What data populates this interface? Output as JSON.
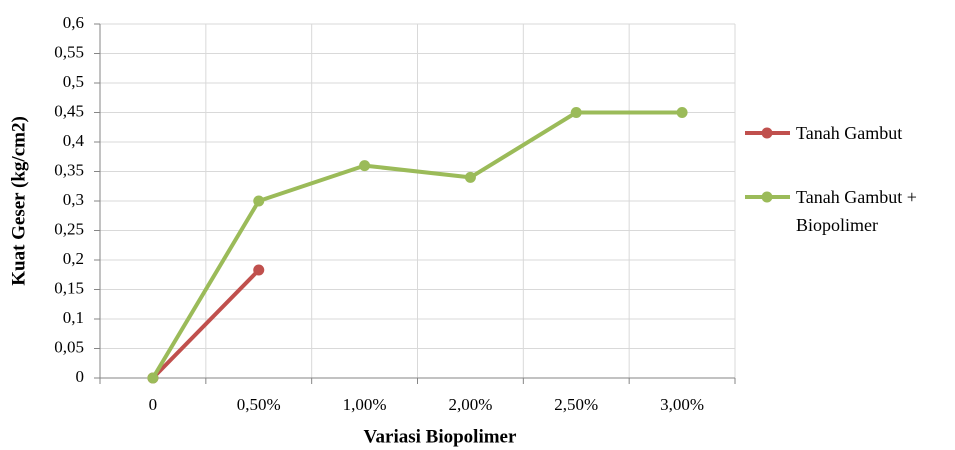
{
  "chart_data": {
    "type": "line",
    "x_label": "Variasi Biopolimer",
    "y_label": "Kuat Geser (kg/cm2)",
    "categories": [
      "0",
      "0,50%",
      "1,00%",
      "2,00%",
      "2,50%",
      "3,00%"
    ],
    "series": [
      {
        "name": "Tanah Gambut",
        "color": "#c0504d",
        "values": [
          0,
          0.183,
          null,
          null,
          null,
          null
        ]
      },
      {
        "name": "Tanah Gambut + Biopolimer",
        "color": "#9bbb59",
        "values": [
          0,
          0.3,
          0.36,
          0.34,
          0.45,
          0.45
        ]
      }
    ],
    "ylim": [
      0,
      0.6
    ],
    "yticks": [
      0,
      {
        "value": 0.05,
        "label": "0,05"
      },
      {
        "value": 0.1,
        "label": "0,1"
      },
      {
        "value": 0.15,
        "label": "0,15"
      },
      {
        "value": 0.2,
        "label": "0,2"
      },
      {
        "value": 0.25,
        "label": "0,25"
      },
      {
        "value": 0.3,
        "label": "0,3"
      },
      {
        "value": 0.35,
        "label": "0,35"
      },
      {
        "value": 0.4,
        "label": "0,4"
      },
      {
        "value": 0.45,
        "label": "0,45"
      },
      {
        "value": 0.5,
        "label": "0,5"
      },
      {
        "value": 0.55,
        "label": "0,55"
      },
      {
        "value": 0.6,
        "label": "0,6"
      }
    ],
    "grid": true,
    "legend": "right"
  }
}
